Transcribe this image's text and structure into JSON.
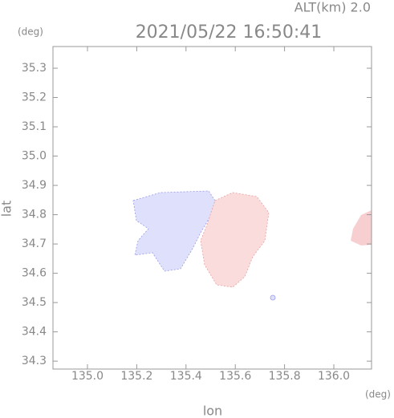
{
  "chart_data": {
    "type": "map",
    "title": "2021/05/22 16:50:41",
    "subtitle": "ALT(km) 2.0",
    "y_unit": "(deg)",
    "x_unit": "(deg)",
    "x_label": "lon",
    "y_label": "lat",
    "xlim": [
      134.86,
      136.153
    ],
    "ylim": [
      34.273,
      35.374
    ],
    "xticks": [
      {
        "value": 135.0,
        "label": "135.0"
      },
      {
        "value": 135.2,
        "label": "135.2"
      },
      {
        "value": 135.4,
        "label": "135.4"
      },
      {
        "value": 135.6,
        "label": "135.6"
      },
      {
        "value": 135.8,
        "label": "135.8"
      },
      {
        "value": 136.0,
        "label": "136.0"
      }
    ],
    "yticks": [
      {
        "value": 34.3,
        "label": "34.3"
      },
      {
        "value": 34.4,
        "label": "34.4"
      },
      {
        "value": 34.5,
        "label": "34.5"
      },
      {
        "value": 34.6,
        "label": "34.6"
      },
      {
        "value": 34.7,
        "label": "34.7"
      },
      {
        "value": 34.8,
        "label": "34.8"
      },
      {
        "value": 34.9,
        "label": "34.9"
      },
      {
        "value": 35.0,
        "label": "35.0"
      },
      {
        "value": 35.1,
        "label": "35.1"
      },
      {
        "value": 35.2,
        "label": "35.2"
      },
      {
        "value": 35.3,
        "label": "35.3"
      }
    ]
  }
}
